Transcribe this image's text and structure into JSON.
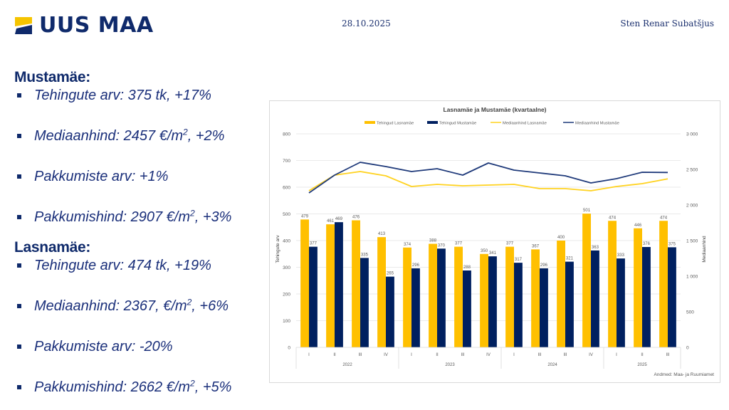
{
  "header": {
    "logo_text": "UUS MAA",
    "date": "28.10.2025",
    "author": "Sten Renar Subatšjus"
  },
  "colors": {
    "navy": "#0f2a6b",
    "bar_yellow": "#ffc000",
    "bar_navy": "#002060",
    "line_yellow": "#ffd21f",
    "line_navy": "#1f3a7a"
  },
  "sections": [
    {
      "title": "Mustamäe:",
      "bullets": [
        {
          "text": "Tehingute arv: 375 tk, +17%",
          "pre": "Tehingute arv: 375 tk, +17%",
          "sup": "",
          "post": ""
        },
        {
          "text": "Mediaanhind: 2457 €/m2, +2%",
          "pre": "Mediaanhind: 2457 €/m",
          "sup": "2",
          "post": ", +2%"
        },
        {
          "text": "Pakkumiste arv: +1%",
          "pre": "Pakkumiste arv: +1%",
          "sup": "",
          "post": ""
        },
        {
          "text": "Pakkumishind: 2907 €/m2, +3%",
          "pre": "Pakkumishind: 2907 €/m",
          "sup": "2",
          "post": ", +3%"
        }
      ]
    },
    {
      "title": "Lasnamäe:",
      "bullets": [
        {
          "text": "Tehingute arv: 474 tk, +19%",
          "pre": "Tehingute arv: 474 tk, +19%",
          "sup": "",
          "post": ""
        },
        {
          "text": "Mediaanhind: 2367, €/m2, +6%",
          "pre": "Mediaanhind: 2367, €/m",
          "sup": "2",
          "post": ", +6%"
        },
        {
          "text": "Pakkumiste arv: -20%",
          "pre": "Pakkumiste arv: -20%",
          "sup": "",
          "post": ""
        },
        {
          "text": "Pakkumishind: 2662 €/m2, +5%",
          "pre": "Pakkumishind: 2662 €/m",
          "sup": "2",
          "post": ", +5%"
        }
      ]
    }
  ],
  "chart_data": {
    "type": "bar",
    "title": "Lasnamäe ja Mustamäe (kvartaalne)",
    "categories": [
      "I",
      "II",
      "III",
      "IV",
      "I",
      "II",
      "III",
      "IV",
      "I",
      "III",
      "III",
      "IV",
      "I",
      "II",
      "III"
    ],
    "year_groups": [
      {
        "label": "2022",
        "count": 4
      },
      {
        "label": "2023",
        "count": 4
      },
      {
        "label": "2024",
        "count": 4
      },
      {
        "label": "2025",
        "count": 3
      }
    ],
    "series": [
      {
        "name": "Tehingud Lasnamäe",
        "kind": "bar",
        "axis": "left",
        "color": "#ffc000",
        "values": [
          479,
          461,
          476,
          413,
          374,
          388,
          377,
          350,
          377,
          367,
          400,
          501,
          474,
          446,
          474
        ]
      },
      {
        "name": "Tehingud Mustamäe",
        "kind": "bar",
        "axis": "left",
        "color": "#002060",
        "values": [
          377,
          469,
          335,
          265,
          296,
          370,
          288,
          341,
          317,
          296,
          321,
          363,
          333,
          376,
          375
        ]
      },
      {
        "name": "Mediaanhind Lasnamäe",
        "kind": "line",
        "axis": "right",
        "color": "#ffd21f",
        "values": [
          2200,
          2420,
          2470,
          2410,
          2260,
          2290,
          2270,
          2280,
          2290,
          2230,
          2230,
          2200,
          2260,
          2300,
          2367
        ]
      },
      {
        "name": "Mediaanhind Mustamäe",
        "kind": "line",
        "axis": "right",
        "color": "#1f3a7a",
        "values": [
          2170,
          2420,
          2600,
          2540,
          2470,
          2510,
          2420,
          2590,
          2490,
          2450,
          2410,
          2310,
          2370,
          2460,
          2457
        ]
      }
    ],
    "ylabel": "Tehingute arv",
    "y2label": "Mediaanhind",
    "ylim": [
      0,
      800
    ],
    "yticks": [
      0,
      100,
      200,
      300,
      400,
      500,
      600,
      700,
      800
    ],
    "y2lim": [
      0,
      3000
    ],
    "y2ticks": [
      "0",
      "500",
      "1 000",
      "1 500",
      "2 000",
      "2 500",
      "3 000"
    ],
    "y2tick_values": [
      0,
      500,
      1000,
      1500,
      2000,
      2500,
      3000
    ],
    "grid": true,
    "legend_position": "top",
    "source_note": "Andmed: Maa- ja Ruumiamet"
  }
}
